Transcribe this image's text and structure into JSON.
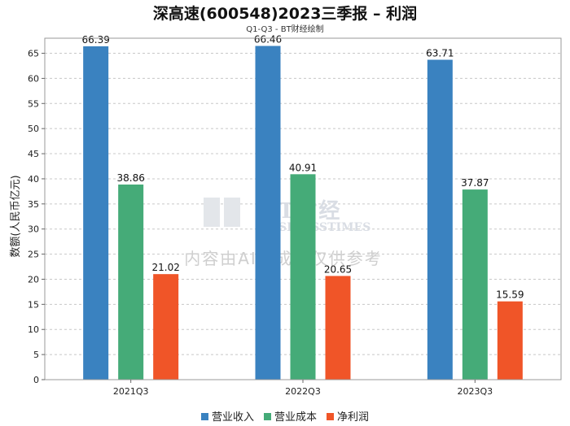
{
  "chart_data": {
    "type": "bar",
    "title": "深高速(600548)2023三季报 – 利润",
    "subtitle": "Q1-Q3 - BT财经绘制",
    "ylabel": "数额(人民币亿元)",
    "xlabel": "",
    "categories": [
      "2021Q3",
      "2022Q3",
      "2023Q3"
    ],
    "ylim": [
      0,
      68
    ],
    "yticks": [
      0,
      5,
      10,
      15,
      20,
      25,
      30,
      35,
      40,
      45,
      50,
      55,
      60,
      65
    ],
    "grid": true,
    "legend_position": "bottom",
    "series": [
      {
        "name": "营业收入",
        "color": "#3a82c0",
        "values": [
          66.39,
          66.46,
          63.71
        ]
      },
      {
        "name": "营业成本",
        "color": "#45ab78",
        "values": [
          38.86,
          40.91,
          37.87
        ]
      },
      {
        "name": "净利润",
        "color": "#f05528",
        "values": [
          21.02,
          20.65,
          15.59
        ]
      }
    ]
  },
  "watermark": {
    "logo": "BT财经",
    "logo_sub": "BUSINESSTIMES",
    "notice": "内容由AI生成，仅供参考"
  }
}
